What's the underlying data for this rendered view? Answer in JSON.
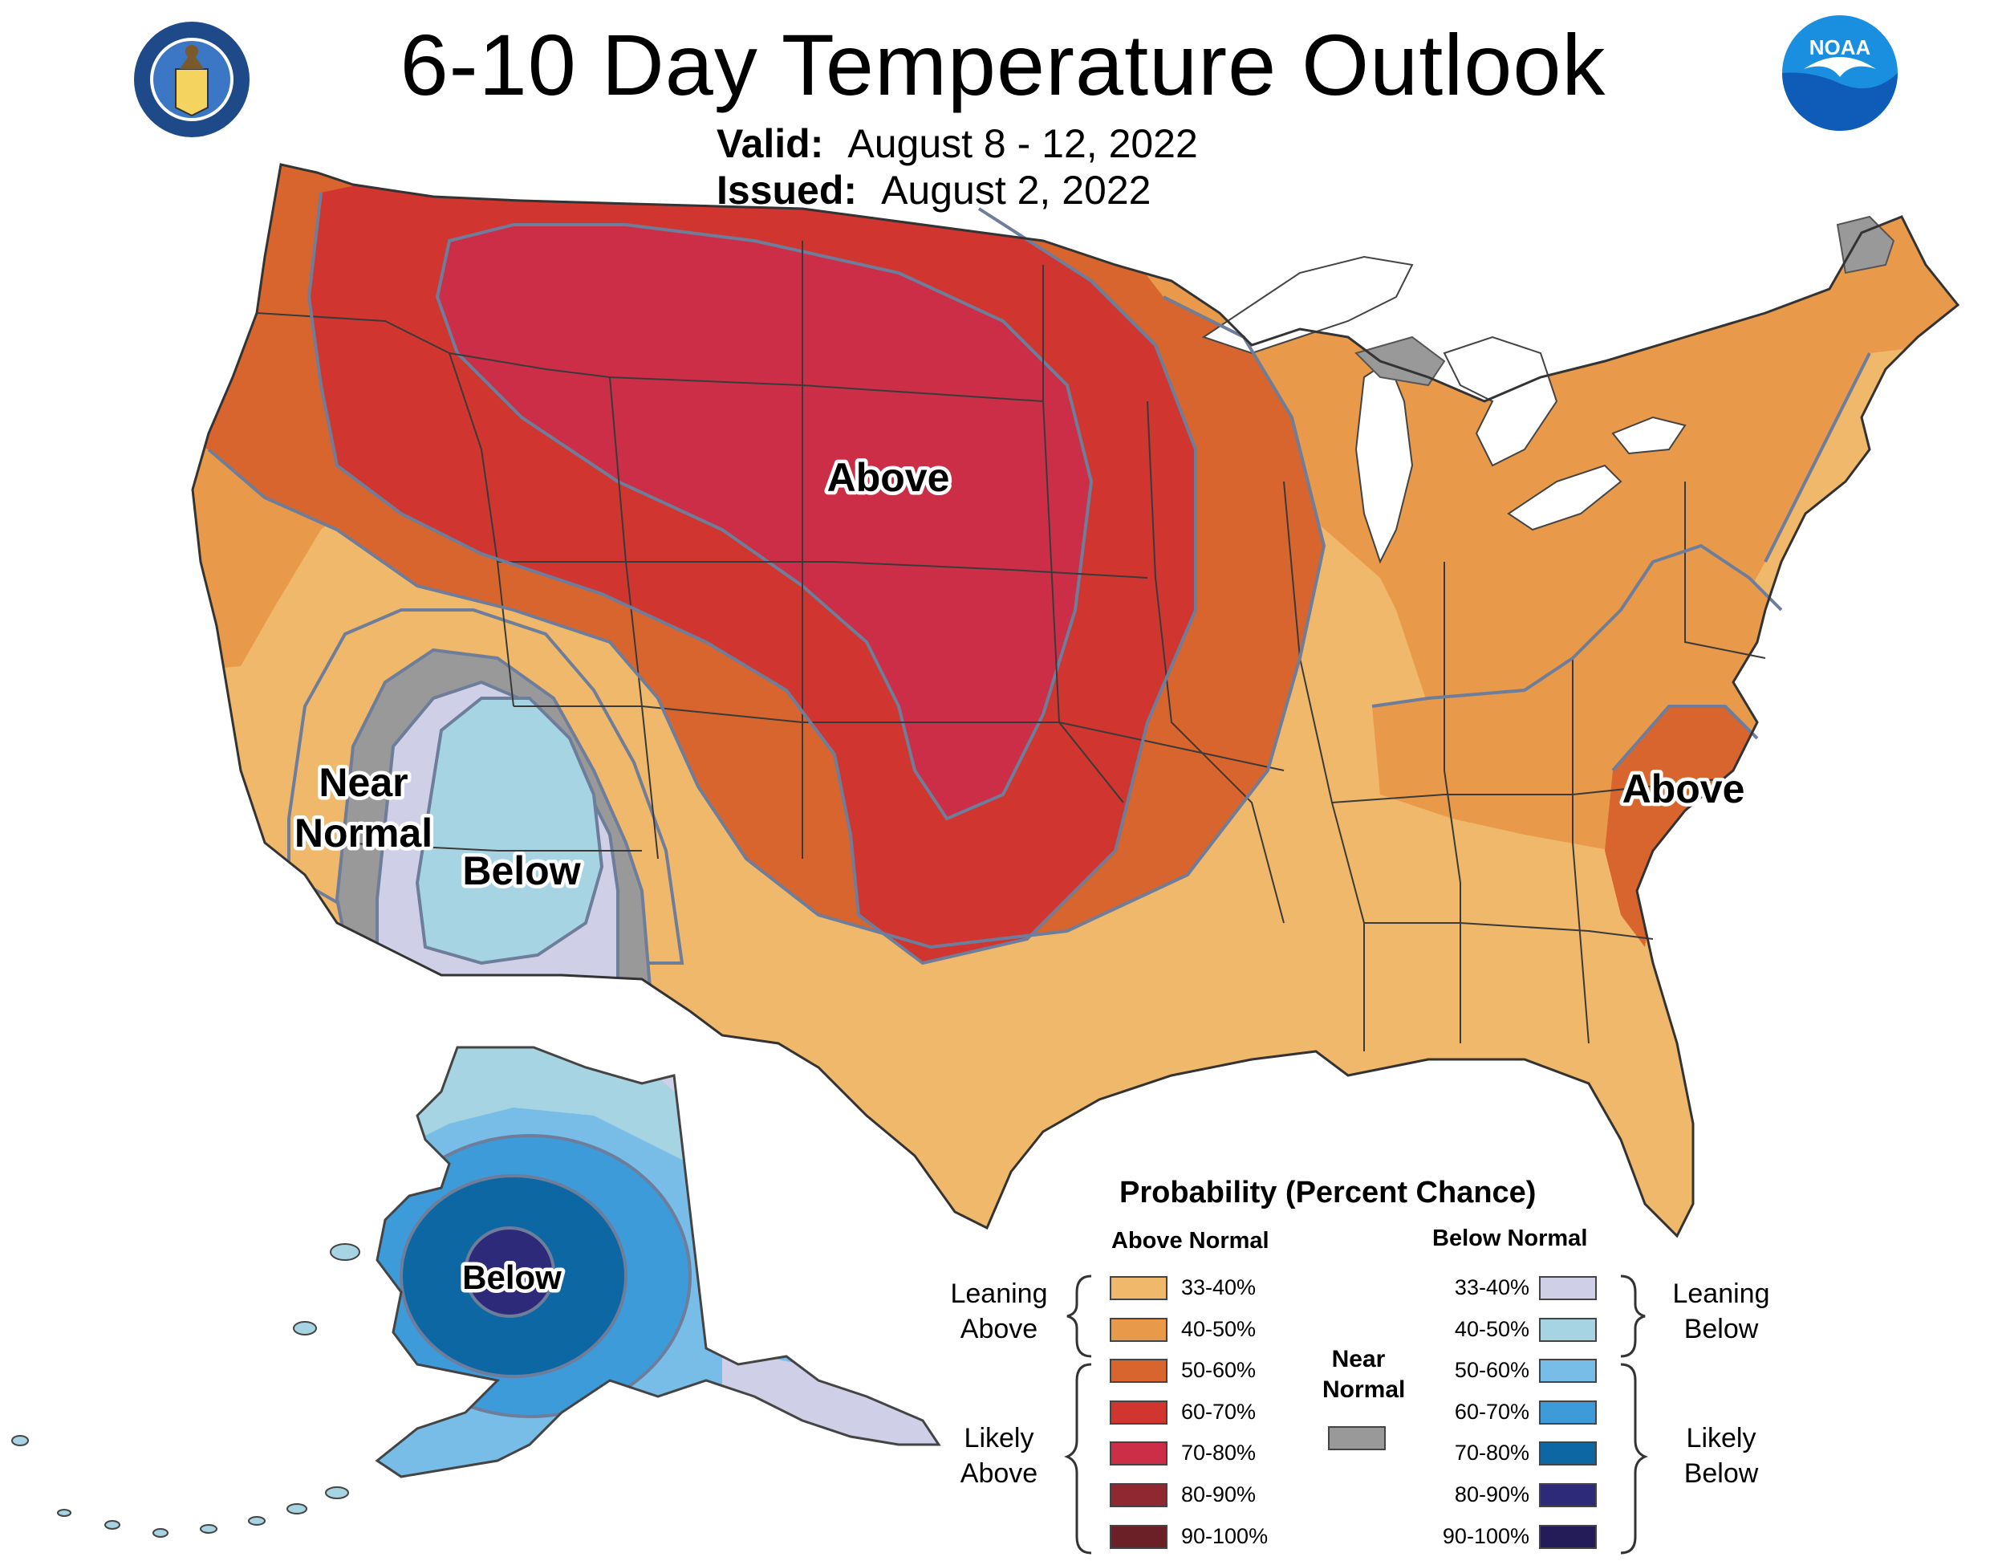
{
  "header": {
    "title": "6-10 Day Temperature Outlook",
    "valid_label": "Valid:",
    "valid_value": "August 8 - 12, 2022",
    "issued_label": "Issued:",
    "issued_value": "August 2, 2022",
    "left_logo": "department-of-commerce-seal",
    "left_logo_text": "DEPARTMENT OF COMMERCE · UNITED STATES OF AMERICA",
    "right_logo": "noaa-logo",
    "right_logo_text": "NOAA"
  },
  "map": {
    "labels": {
      "above_central": "Above",
      "above_east": "Above",
      "near_normal_1": "Near",
      "near_normal_2": "Normal",
      "below_southwest": "Below",
      "below_alaska": "Below"
    }
  },
  "legend": {
    "title": "Probability (Percent Chance)",
    "above_header": "Above Normal",
    "below_header": "Below Normal",
    "near_header_1": "Near",
    "near_header_2": "Normal",
    "near_color": "#999999",
    "leaning_above_1": "Leaning",
    "leaning_above_2": "Above",
    "likely_above_1": "Likely",
    "likely_above_2": "Above",
    "leaning_below_1": "Leaning",
    "leaning_below_2": "Below",
    "likely_below_1": "Likely",
    "likely_below_2": "Below",
    "above": [
      {
        "range": "33-40%",
        "color": "#f0b86a"
      },
      {
        "range": "40-50%",
        "color": "#e89a4a"
      },
      {
        "range": "50-60%",
        "color": "#d9652e"
      },
      {
        "range": "60-70%",
        "color": "#d13530"
      },
      {
        "range": "70-80%",
        "color": "#cc2e48"
      },
      {
        "range": "80-90%",
        "color": "#8f2830"
      },
      {
        "range": "90-100%",
        "color": "#6b1f26"
      }
    ],
    "below": [
      {
        "range": "33-40%",
        "color": "#cfd0e8"
      },
      {
        "range": "40-50%",
        "color": "#a6d4e2"
      },
      {
        "range": "50-60%",
        "color": "#77bde8"
      },
      {
        "range": "60-70%",
        "color": "#3d9bd9"
      },
      {
        "range": "70-80%",
        "color": "#0d67a3"
      },
      {
        "range": "80-90%",
        "color": "#2e2a7a"
      },
      {
        "range": "90-100%",
        "color": "#241c58"
      }
    ]
  }
}
